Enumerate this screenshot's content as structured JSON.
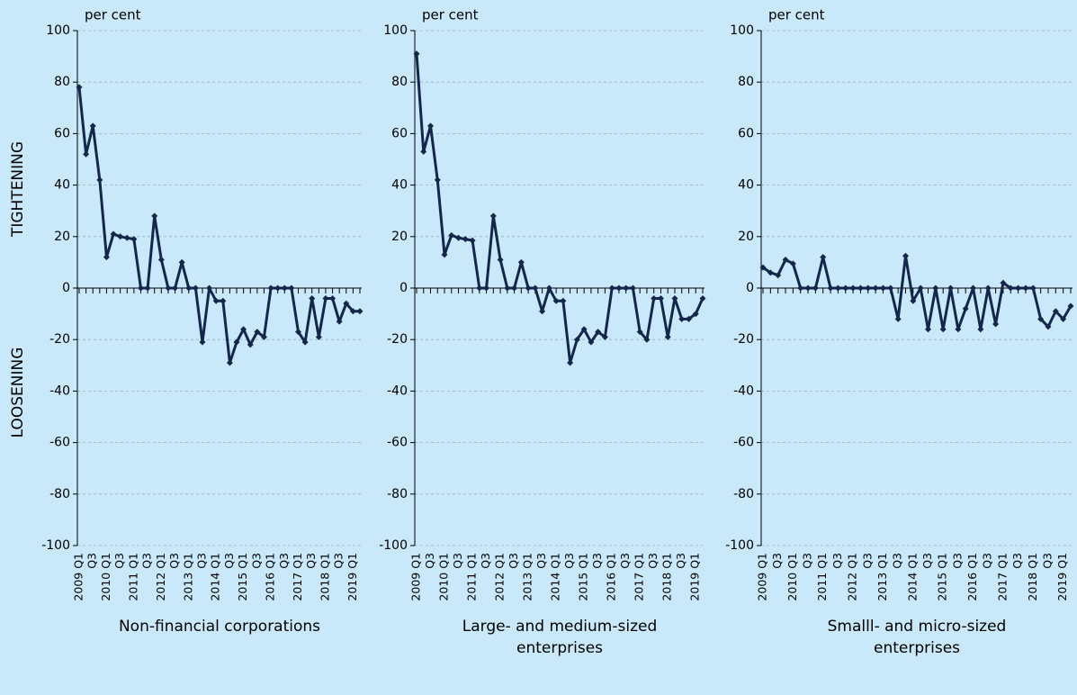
{
  "chart_data": [
    {
      "type": "line",
      "title": "Non-financial corporations",
      "unit_label": "per cent",
      "annotations": [
        "TIGHTENING",
        "LOOSENING"
      ],
      "categories": [
        "2009 Q1",
        null,
        "Q3",
        null,
        "2010 Q1",
        null,
        "Q3",
        null,
        "2011 Q1",
        null,
        "Q3",
        null,
        "2012 Q1",
        null,
        "Q3",
        null,
        "2013 Q1",
        null,
        "Q3",
        null,
        "2014 Q1",
        null,
        "Q3",
        null,
        "2015 Q1",
        null,
        "Q3",
        null,
        "2016 Q1",
        null,
        "Q3",
        null,
        "2017 Q1",
        null,
        "Q3",
        null,
        "2018 Q1",
        null,
        "Q3",
        null,
        "2019 Q1",
        null
      ],
      "series": [
        {
          "color": "#14264a",
          "values": [
            78,
            52,
            63,
            42,
            12,
            21,
            20,
            19.5,
            19,
            0,
            0,
            28,
            11,
            0,
            0,
            10,
            0,
            0,
            -21,
            0,
            -5,
            -5,
            -29,
            -21,
            -16,
            -22,
            -17,
            -19,
            0,
            0,
            0,
            0,
            -17,
            -21,
            -4,
            -19,
            -4,
            -4,
            -13,
            -6,
            -9,
            -9
          ]
        }
      ],
      "ylim": [
        -100,
        100
      ],
      "yticks": [
        -100,
        -80,
        -60,
        -40,
        -20,
        0,
        20,
        40,
        60,
        80,
        100
      ],
      "grid": true
    },
    {
      "type": "line",
      "title": "Large- and medium-sized enterprises",
      "unit_label": "per cent",
      "categories": [
        "2009 Q1",
        null,
        "Q3",
        null,
        "2010 Q1",
        null,
        "Q3",
        null,
        "2011 Q1",
        null,
        "Q3",
        null,
        "2012 Q1",
        null,
        "Q3",
        null,
        "2013 Q1",
        null,
        "Q3",
        null,
        "2014 Q1",
        null,
        "Q3",
        null,
        "2015 Q1",
        null,
        "Q3",
        null,
        "2016 Q1",
        null,
        "Q3",
        null,
        "2017 Q1",
        null,
        "Q3",
        null,
        "2018 Q1",
        null,
        "Q3",
        null,
        "2019 Q1",
        null
      ],
      "series": [
        {
          "color": "#14264a",
          "values": [
            91,
            53,
            63,
            42,
            13,
            20.5,
            19.5,
            19,
            18.5,
            0,
            0,
            28,
            11,
            0,
            0,
            10,
            0,
            0,
            -9,
            0,
            -5,
            -5,
            -29,
            -20,
            -16,
            -21,
            -17,
            -19,
            0,
            0,
            0,
            0,
            -17,
            -20,
            -4,
            -4,
            -19,
            -4,
            -12,
            -12,
            -10,
            -4
          ]
        }
      ],
      "ylim": [
        -100,
        100
      ],
      "yticks": [
        -100,
        -80,
        -60,
        -40,
        -20,
        0,
        20,
        40,
        60,
        80,
        100
      ],
      "grid": true
    },
    {
      "type": "line",
      "title": "Smalll- and micro-sized enterprises",
      "unit_label": "per cent",
      "categories": [
        "2009 Q1",
        null,
        "Q3",
        null,
        "2010 Q1",
        null,
        "Q3",
        null,
        "2011 Q1",
        null,
        "Q3",
        null,
        "2012 Q1",
        null,
        "Q3",
        null,
        "2013 Q1",
        null,
        "Q3",
        null,
        "2014 Q1",
        null,
        "Q3",
        null,
        "2015 Q1",
        null,
        "Q3",
        null,
        "2016 Q1",
        null,
        "Q3",
        null,
        "2017 Q1",
        null,
        "Q3",
        null,
        "2018 Q1",
        null,
        "Q3",
        null,
        "2019 Q1",
        null
      ],
      "series": [
        {
          "color": "#14264a",
          "values": [
            8,
            6,
            5,
            11,
            9.5,
            0,
            0,
            0,
            12,
            0,
            0,
            0,
            0,
            0,
            0,
            0,
            0,
            0,
            -12,
            12.5,
            -5,
            0,
            -16,
            0,
            -16,
            0,
            -16,
            -8,
            0,
            -16,
            0,
            -14,
            2,
            0,
            0,
            0,
            0,
            -12,
            -15,
            -9,
            -12,
            -7
          ]
        }
      ],
      "ylim": [
        -100,
        100
      ],
      "yticks": [
        -100,
        -80,
        -60,
        -40,
        -20,
        0,
        20,
        40,
        60,
        80,
        100
      ],
      "grid": true
    }
  ]
}
